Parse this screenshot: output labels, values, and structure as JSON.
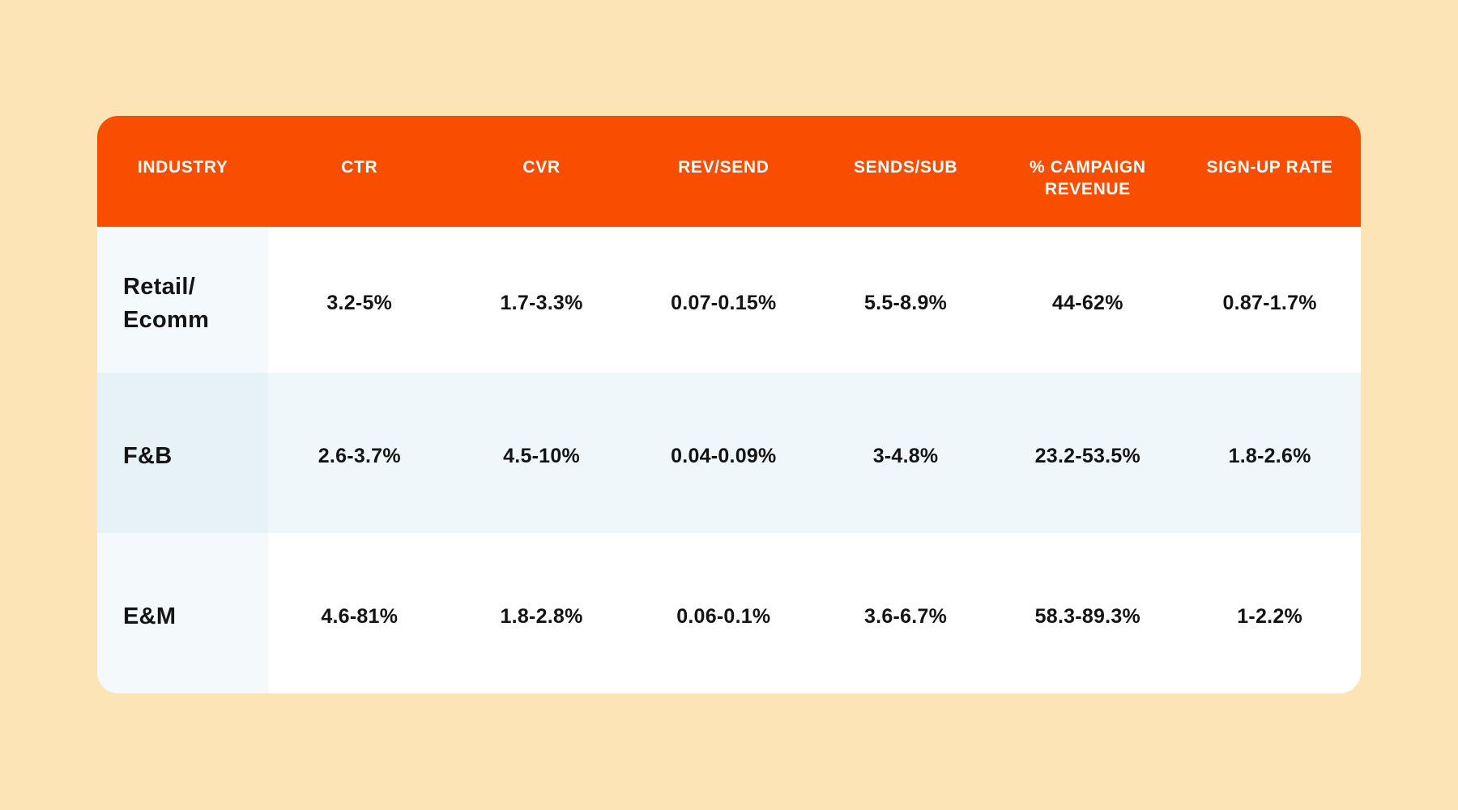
{
  "colors": {
    "page_background": "#FCE4B6",
    "header_background": "#F94E00",
    "header_text": "#FFFFFF",
    "row_alt_background": "#EFF7FA",
    "body_text": "#141414"
  },
  "chart_data": {
    "type": "table",
    "title": "",
    "columns": [
      "INDUSTRY",
      "CTR",
      "CVR",
      "REV/SEND",
      "SENDS/SUB",
      "% CAMPAIGN REVENUE",
      "SIGN-UP RATE"
    ],
    "rows": [
      {
        "label": "Retail/\nEcomm",
        "values": [
          "3.2-5%",
          "1.7-3.3%",
          "0.07-0.15%",
          "5.5-8.9%",
          "44-62%",
          "0.87-1.7%"
        ]
      },
      {
        "label": "F&B",
        "values": [
          "2.6-3.7%",
          "4.5-10%",
          "0.04-0.09%",
          "3-4.8%",
          "23.2-53.5%",
          "1.8-2.6%"
        ]
      },
      {
        "label": "E&M",
        "values": [
          "4.6-81%",
          "1.8-2.8%",
          "0.06-0.1%",
          "3.6-6.7%",
          "58.3-89.3%",
          "1-2.2%"
        ]
      }
    ]
  }
}
